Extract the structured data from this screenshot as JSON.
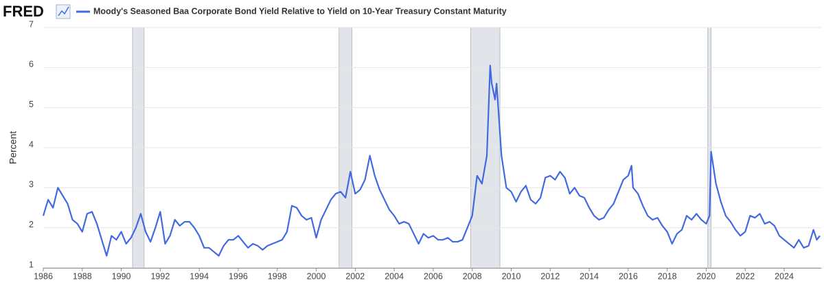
{
  "chart_data": {
    "type": "line",
    "logo": "FRED",
    "ylabel": "Percent",
    "xlim": [
      1986,
      2025.9
    ],
    "xticks": [
      1986,
      1988,
      1990,
      1992,
      1994,
      1996,
      1998,
      2000,
      2002,
      2004,
      2006,
      2008,
      2010,
      2012,
      2014,
      2016,
      2018,
      2020,
      2022,
      2024
    ],
    "ylim": [
      1,
      7
    ],
    "yticks": [
      1,
      2,
      3,
      4,
      5,
      6,
      7
    ],
    "grid": true,
    "recessions": [
      [
        1990.58,
        1991.17
      ],
      [
        2001.17,
        2001.83
      ],
      [
        2007.92,
        2009.42
      ],
      [
        2020.08,
        2020.25
      ]
    ],
    "x": [
      1986,
      1986.25,
      1986.5,
      1986.75,
      1987,
      1987.25,
      1987.5,
      1987.75,
      1988,
      1988.25,
      1988.5,
      1988.75,
      1989,
      1989.25,
      1989.5,
      1989.75,
      1990,
      1990.25,
      1990.5,
      1990.75,
      1991,
      1991.25,
      1991.5,
      1991.75,
      1992,
      1992.25,
      1992.5,
      1992.75,
      1993,
      1993.25,
      1993.5,
      1993.75,
      1994,
      1994.25,
      1994.5,
      1994.75,
      1995,
      1995.25,
      1995.5,
      1995.75,
      1996,
      1996.25,
      1996.5,
      1996.75,
      1997,
      1997.25,
      1997.5,
      1997.75,
      1998,
      1998.25,
      1998.5,
      1998.75,
      1999,
      1999.25,
      1999.5,
      1999.75,
      2000,
      2000.25,
      2000.5,
      2000.75,
      2001,
      2001.25,
      2001.5,
      2001.75,
      2002,
      2002.25,
      2002.5,
      2002.75,
      2003,
      2003.25,
      2003.5,
      2003.75,
      2004,
      2004.25,
      2004.5,
      2004.75,
      2005,
      2005.25,
      2005.5,
      2005.75,
      2006,
      2006.25,
      2006.5,
      2006.75,
      2007,
      2007.25,
      2007.5,
      2007.75,
      2008,
      2008.25,
      2008.5,
      2008.75,
      2008.92,
      2009,
      2009.17,
      2009.25,
      2009.5,
      2009.75,
      2010,
      2010.25,
      2010.5,
      2010.75,
      2011,
      2011.25,
      2011.5,
      2011.75,
      2012,
      2012.25,
      2012.5,
      2012.75,
      2013,
      2013.25,
      2013.5,
      2013.75,
      2014,
      2014.25,
      2014.5,
      2014.75,
      2015,
      2015.25,
      2015.5,
      2015.75,
      2016,
      2016.17,
      2016.25,
      2016.5,
      2016.75,
      2017,
      2017.25,
      2017.5,
      2017.75,
      2018,
      2018.25,
      2018.5,
      2018.75,
      2019,
      2019.25,
      2019.5,
      2019.75,
      2020,
      2020.17,
      2020.25,
      2020.5,
      2020.75,
      2021,
      2021.25,
      2021.5,
      2021.75,
      2022,
      2022.25,
      2022.5,
      2022.75,
      2023,
      2023.25,
      2023.5,
      2023.75,
      2024,
      2024.25,
      2024.5,
      2024.75,
      2025,
      2025.25,
      2025.5,
      2025.67,
      2025.83
    ],
    "series": [
      {
        "name": "Moody's Seasoned Baa Corporate Bond Yield Relative to Yield on 10-Year Treasury Constant Maturity",
        "color": "#4169e1",
        "values": [
          2.3,
          2.7,
          2.5,
          3.0,
          2.8,
          2.6,
          2.2,
          2.1,
          1.9,
          2.35,
          2.4,
          2.1,
          1.7,
          1.3,
          1.8,
          1.7,
          1.9,
          1.6,
          1.75,
          2.0,
          2.35,
          1.9,
          1.65,
          2.0,
          2.4,
          1.6,
          1.8,
          2.2,
          2.05,
          2.15,
          2.15,
          2.0,
          1.8,
          1.5,
          1.5,
          1.4,
          1.3,
          1.55,
          1.7,
          1.7,
          1.8,
          1.65,
          1.5,
          1.6,
          1.55,
          1.45,
          1.55,
          1.6,
          1.65,
          1.7,
          1.9,
          2.55,
          2.5,
          2.3,
          2.2,
          2.25,
          1.75,
          2.2,
          2.45,
          2.7,
          2.85,
          2.9,
          2.75,
          3.4,
          2.85,
          2.95,
          3.2,
          3.8,
          3.3,
          2.95,
          2.7,
          2.45,
          2.3,
          2.1,
          2.15,
          2.1,
          1.85,
          1.6,
          1.85,
          1.75,
          1.8,
          1.7,
          1.7,
          1.75,
          1.65,
          1.65,
          1.7,
          2.0,
          2.3,
          3.3,
          3.1,
          3.8,
          6.05,
          5.6,
          5.2,
          5.6,
          3.8,
          3.0,
          2.9,
          2.65,
          2.9,
          3.05,
          2.7,
          2.6,
          2.75,
          3.25,
          3.3,
          3.2,
          3.4,
          3.25,
          2.85,
          3.0,
          2.8,
          2.75,
          2.5,
          2.3,
          2.2,
          2.25,
          2.45,
          2.6,
          2.9,
          3.2,
          3.3,
          3.55,
          3.0,
          2.85,
          2.55,
          2.3,
          2.2,
          2.25,
          2.05,
          1.9,
          1.6,
          1.85,
          1.95,
          2.3,
          2.2,
          2.35,
          2.2,
          2.1,
          2.3,
          3.9,
          3.1,
          2.65,
          2.3,
          2.15,
          1.95,
          1.8,
          1.9,
          2.3,
          2.25,
          2.35,
          2.1,
          2.15,
          2.05,
          1.8,
          1.7,
          1.6,
          1.5,
          1.7,
          1.5,
          1.55,
          1.95,
          1.7,
          1.8
        ]
      }
    ]
  }
}
